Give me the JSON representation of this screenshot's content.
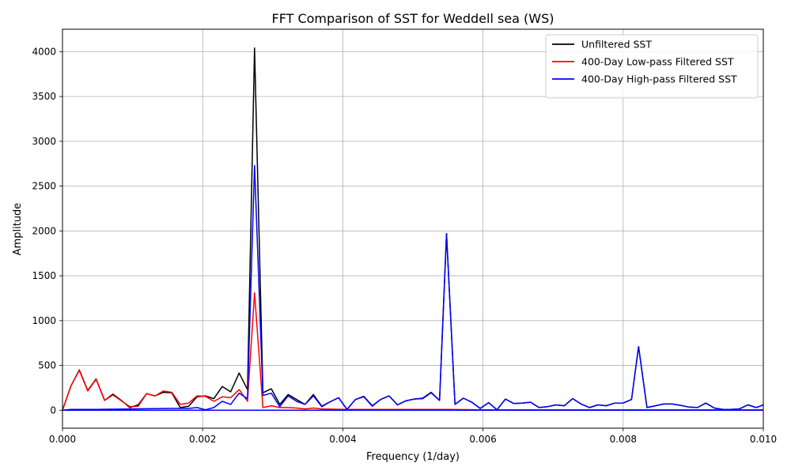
{
  "chart_data": {
    "type": "line",
    "title": "FFT Comparison of SST for Weddell sea (WS)",
    "xlabel": "Frequency (1/day)",
    "ylabel": "Amplitude",
    "xlim": [
      0,
      0.01
    ],
    "ylim": [
      -200,
      4250
    ],
    "xticks": [
      0,
      0.002,
      0.004,
      0.006,
      0.008,
      0.01
    ],
    "xtick_labels": [
      "0.000",
      "0.002",
      "0.004",
      "0.006",
      "0.008",
      "0.010"
    ],
    "yticks": [
      0,
      500,
      1000,
      1500,
      2000,
      2500,
      3000,
      3500,
      4000
    ],
    "ytick_labels": [
      "0",
      "500",
      "1000",
      "1500",
      "2000",
      "2500",
      "3000",
      "3500",
      "4000"
    ],
    "grid": true,
    "legend_position": "top-right",
    "series": [
      {
        "name": "Unfiltered SST",
        "color": "#000000",
        "points": [
          [
            0,
            0
          ],
          [
            0.00012,
            270
          ],
          [
            0.00024,
            450
          ],
          [
            0.00036,
            220
          ],
          [
            0.00048,
            350
          ],
          [
            0.0006,
            110
          ],
          [
            0.00072,
            180
          ],
          [
            0.00084,
            110
          ],
          [
            0.00096,
            30
          ],
          [
            0.00108,
            60
          ],
          [
            0.0012,
            185
          ],
          [
            0.00132,
            160
          ],
          [
            0.00144,
            200
          ],
          [
            0.00156,
            195
          ],
          [
            0.00168,
            30
          ],
          [
            0.0018,
            45
          ],
          [
            0.00192,
            150
          ],
          [
            0.00204,
            160
          ],
          [
            0.00216,
            130
          ],
          [
            0.00228,
            265
          ],
          [
            0.0024,
            205
          ],
          [
            0.00252,
            415
          ],
          [
            0.00264,
            230
          ],
          [
            0.00274,
            4040
          ],
          [
            0.00286,
            195
          ],
          [
            0.00298,
            240
          ],
          [
            0.0031,
            65
          ],
          [
            0.00322,
            175
          ],
          [
            0.00334,
            120
          ],
          [
            0.00346,
            65
          ],
          [
            0.00358,
            175
          ],
          [
            0.0037,
            45
          ],
          [
            0.00382,
            95
          ],
          [
            0.00394,
            140
          ],
          [
            0.00406,
            10
          ],
          [
            0.00418,
            120
          ],
          [
            0.0043,
            155
          ],
          [
            0.00442,
            50
          ],
          [
            0.00454,
            120
          ],
          [
            0.00466,
            160
          ],
          [
            0.00478,
            60
          ],
          [
            0.0049,
            105
          ],
          [
            0.00502,
            125
          ],
          [
            0.00514,
            135
          ],
          [
            0.00526,
            200
          ],
          [
            0.00538,
            110
          ],
          [
            0.00548,
            1970
          ],
          [
            0.0056,
            65
          ],
          [
            0.00572,
            135
          ],
          [
            0.00584,
            90
          ],
          [
            0.00596,
            20
          ],
          [
            0.00608,
            85
          ],
          [
            0.0062,
            5
          ],
          [
            0.00632,
            125
          ],
          [
            0.00644,
            75
          ],
          [
            0.00656,
            80
          ],
          [
            0.00668,
            90
          ],
          [
            0.0068,
            30
          ],
          [
            0.00692,
            40
          ],
          [
            0.00704,
            60
          ],
          [
            0.00716,
            50
          ],
          [
            0.00728,
            130
          ],
          [
            0.0074,
            70
          ],
          [
            0.00752,
            30
          ],
          [
            0.00764,
            60
          ],
          [
            0.00776,
            50
          ],
          [
            0.00788,
            80
          ],
          [
            0.008,
            80
          ],
          [
            0.00812,
            120
          ],
          [
            0.00822,
            710
          ],
          [
            0.00834,
            30
          ],
          [
            0.00846,
            50
          ],
          [
            0.00858,
            70
          ],
          [
            0.0087,
            70
          ],
          [
            0.00882,
            55
          ],
          [
            0.00894,
            35
          ],
          [
            0.00906,
            30
          ],
          [
            0.00918,
            80
          ],
          [
            0.0093,
            25
          ],
          [
            0.00942,
            10
          ],
          [
            0.00954,
            10
          ],
          [
            0.00966,
            15
          ],
          [
            0.00978,
            60
          ],
          [
            0.0099,
            30
          ],
          [
            0.01,
            60
          ]
        ]
      },
      {
        "name": "400-Day Low-pass Filtered SST",
        "color": "#ff0000",
        "points": [
          [
            0,
            0
          ],
          [
            0.00012,
            270
          ],
          [
            0.00024,
            445
          ],
          [
            0.00036,
            215
          ],
          [
            0.00048,
            345
          ],
          [
            0.0006,
            110
          ],
          [
            0.00072,
            170
          ],
          [
            0.00084,
            105
          ],
          [
            0.00096,
            40
          ],
          [
            0.00108,
            45
          ],
          [
            0.0012,
            185
          ],
          [
            0.00132,
            160
          ],
          [
            0.00144,
            215
          ],
          [
            0.00156,
            200
          ],
          [
            0.00168,
            65
          ],
          [
            0.0018,
            80
          ],
          [
            0.00192,
            160
          ],
          [
            0.00204,
            155
          ],
          [
            0.00216,
            100
          ],
          [
            0.00228,
            150
          ],
          [
            0.0024,
            140
          ],
          [
            0.00252,
            230
          ],
          [
            0.00264,
            100
          ],
          [
            0.00274,
            1310
          ],
          [
            0.00286,
            30
          ],
          [
            0.00298,
            50
          ],
          [
            0.0031,
            30
          ],
          [
            0.00322,
            30
          ],
          [
            0.00334,
            25
          ],
          [
            0.00346,
            15
          ],
          [
            0.00358,
            25
          ],
          [
            0.0037,
            15
          ],
          [
            0.004,
            10
          ],
          [
            0.0045,
            10
          ],
          [
            0.005,
            10
          ],
          [
            0.0055,
            10
          ],
          [
            0.006,
            5
          ],
          [
            0.007,
            5
          ],
          [
            0.008,
            5
          ],
          [
            0.009,
            5
          ],
          [
            0.01,
            5
          ]
        ]
      },
      {
        "name": "400-Day High-pass Filtered SST",
        "color": "#0000ff",
        "points": [
          [
            0,
            0
          ],
          [
            0.00012,
            10
          ],
          [
            0.0005,
            10
          ],
          [
            0.001,
            15
          ],
          [
            0.0015,
            20
          ],
          [
            0.0018,
            20
          ],
          [
            0.00192,
            30
          ],
          [
            0.00204,
            5
          ],
          [
            0.00216,
            30
          ],
          [
            0.00228,
            100
          ],
          [
            0.0024,
            65
          ],
          [
            0.00252,
            190
          ],
          [
            0.00264,
            130
          ],
          [
            0.00274,
            2730
          ],
          [
            0.00286,
            165
          ],
          [
            0.00298,
            190
          ],
          [
            0.0031,
            40
          ],
          [
            0.00322,
            160
          ],
          [
            0.00334,
            100
          ],
          [
            0.00346,
            65
          ],
          [
            0.00358,
            160
          ],
          [
            0.0037,
            40
          ],
          [
            0.00382,
            95
          ],
          [
            0.00394,
            140
          ],
          [
            0.00406,
            10
          ],
          [
            0.00418,
            120
          ],
          [
            0.0043,
            150
          ],
          [
            0.00442,
            45
          ],
          [
            0.00454,
            120
          ],
          [
            0.00466,
            160
          ],
          [
            0.00478,
            60
          ],
          [
            0.0049,
            105
          ],
          [
            0.00502,
            125
          ],
          [
            0.00514,
            130
          ],
          [
            0.00526,
            195
          ],
          [
            0.00538,
            110
          ],
          [
            0.00548,
            1970
          ],
          [
            0.0056,
            65
          ],
          [
            0.00572,
            135
          ],
          [
            0.00584,
            90
          ],
          [
            0.00596,
            20
          ],
          [
            0.00608,
            85
          ],
          [
            0.0062,
            5
          ],
          [
            0.00632,
            125
          ],
          [
            0.00644,
            75
          ],
          [
            0.00656,
            80
          ],
          [
            0.00668,
            90
          ],
          [
            0.0068,
            30
          ],
          [
            0.00692,
            40
          ],
          [
            0.00704,
            60
          ],
          [
            0.00716,
            50
          ],
          [
            0.00728,
            130
          ],
          [
            0.0074,
            70
          ],
          [
            0.00752,
            30
          ],
          [
            0.00764,
            60
          ],
          [
            0.00776,
            50
          ],
          [
            0.00788,
            80
          ],
          [
            0.008,
            80
          ],
          [
            0.00812,
            120
          ],
          [
            0.00822,
            710
          ],
          [
            0.00834,
            30
          ],
          [
            0.00846,
            50
          ],
          [
            0.00858,
            70
          ],
          [
            0.0087,
            70
          ],
          [
            0.00882,
            55
          ],
          [
            0.00894,
            35
          ],
          [
            0.00906,
            30
          ],
          [
            0.00918,
            80
          ],
          [
            0.0093,
            25
          ],
          [
            0.00942,
            10
          ],
          [
            0.00954,
            10
          ],
          [
            0.00966,
            15
          ],
          [
            0.00978,
            60
          ],
          [
            0.0099,
            30
          ],
          [
            0.01,
            60
          ]
        ]
      },
      {
        "name": "",
        "color": "#0000ff",
        "points": [
          [
            0,
            0
          ],
          [
            0.01,
            0
          ]
        ]
      }
    ]
  }
}
